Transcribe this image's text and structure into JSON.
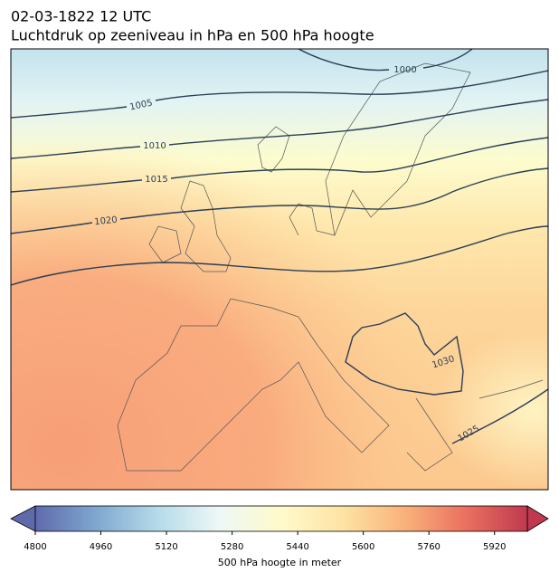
{
  "header": {
    "title": "02-03-1822 12 UTC",
    "subtitle": "Luchtdruk op zeeniveau in hPa en 500 hPa hoogte"
  },
  "map": {
    "contour_labels": [
      1000,
      1005,
      1010,
      1015,
      1020,
      1030,
      1025
    ]
  },
  "colorbar": {
    "label": "500 hPa hoogte in meter",
    "xlim": [
      4800,
      6000
    ],
    "xticks": [
      4800,
      4960,
      5120,
      5280,
      5440,
      5600,
      5760,
      5920
    ],
    "colors": [
      "#5f6aad",
      "#7fa8cf",
      "#b6dbea",
      "#eef8f6",
      "#fffacb",
      "#fee3a3",
      "#f9b27b",
      "#ea7060",
      "#c0394f"
    ]
  }
}
